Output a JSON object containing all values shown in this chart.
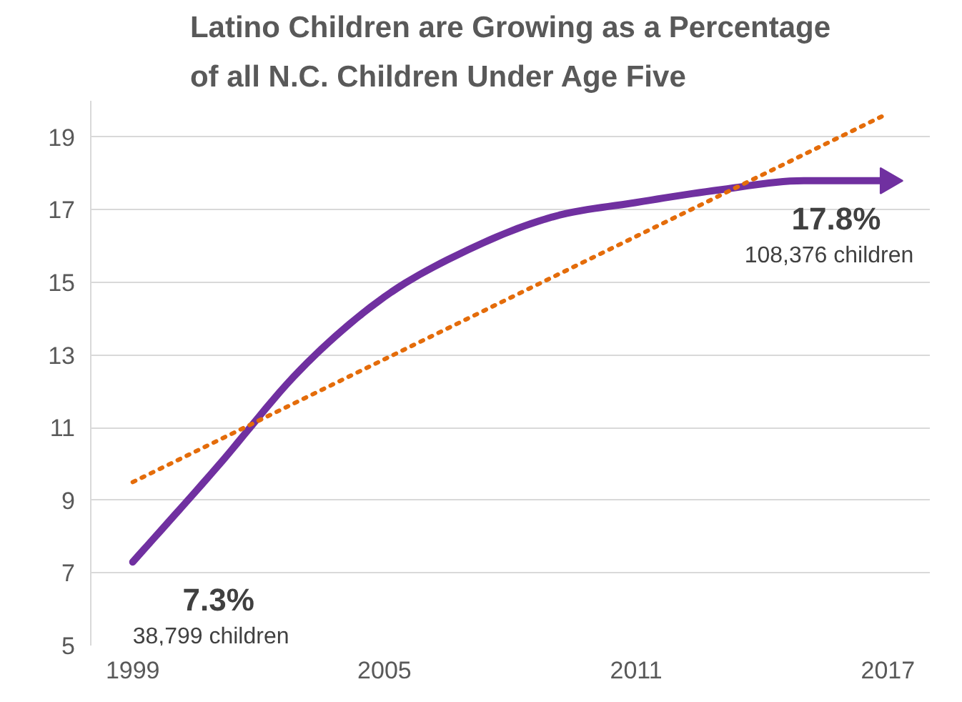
{
  "chart_data": {
    "type": "line",
    "title": "Latino Children are Growing as a Percentage of all N.C. Children Under Age Five",
    "series": [
      {
        "color": "#7030a0",
        "line_style": "solid",
        "x": [
          1999,
          2001,
          2003,
          2005,
          2007,
          2009,
          2011,
          2013,
          2015,
          2017
        ],
        "values": [
          7.3,
          9.9,
          12.6,
          14.6,
          15.9,
          16.8,
          17.2,
          17.55,
          17.8,
          17.8
        ]
      },
      {
        "color": "#e46c0a",
        "line_style": "dotted",
        "x": [
          1999,
          2017
        ],
        "values": [
          9.5,
          19.65
        ]
      }
    ],
    "xlim": [
      1998,
      2018
    ],
    "xticks": [
      1999,
      2005,
      2011,
      2017
    ],
    "ylim": [
      5,
      20
    ],
    "yticks": [
      5,
      7,
      9,
      11,
      13,
      15,
      17,
      19
    ],
    "grid": "y",
    "annotations": [
      {
        "text": "7.3%\n38,799 children",
        "x": 1999,
        "y": 7.3
      },
      {
        "text": "17.8%\n108,376 children",
        "x": 2017,
        "y": 17.8
      }
    ]
  }
}
